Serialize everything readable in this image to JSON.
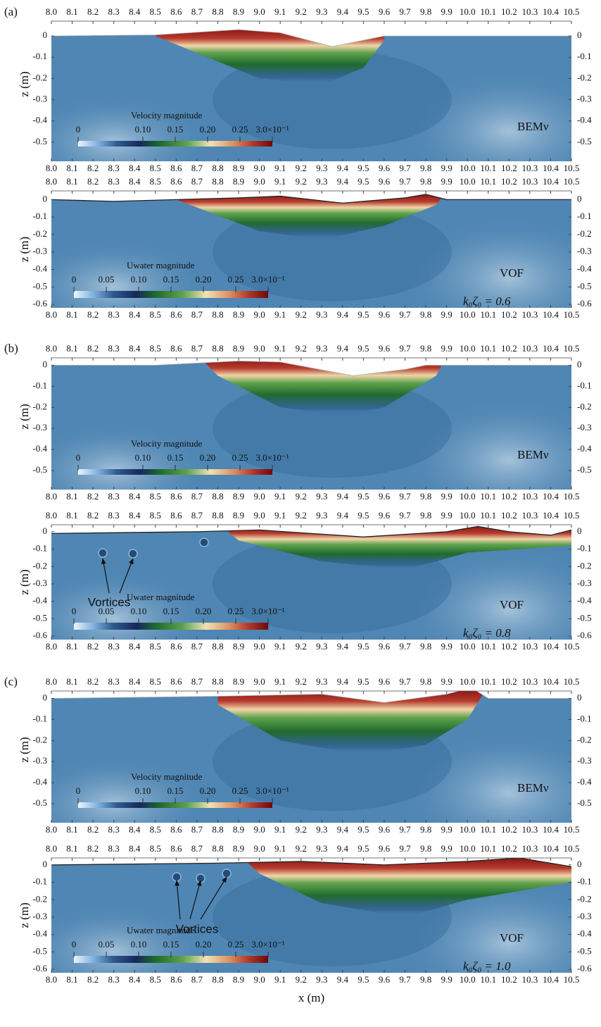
{
  "chart_data": [
    {
      "type": "field",
      "panel_label": "(a)",
      "method_label": "BEMν",
      "ylabel": "z (m)",
      "xlim": [
        8,
        10.5
      ],
      "xticks": [
        {
          "value": 8,
          "label": "8.0"
        },
        8.1,
        8.2,
        8.3,
        8.4,
        8.5,
        8.6,
        8.7,
        8.8,
        8.9,
        {
          "value": 9,
          "label": "9.0"
        },
        9.1,
        9.2,
        9.3,
        9.4,
        9.5,
        9.6,
        9.7,
        9.8,
        9.9,
        {
          "value": 10,
          "label": "10.0"
        },
        10.1,
        10.2,
        10.3,
        10.4,
        10.5
      ],
      "ylim": [
        -0.59,
        0.07
      ],
      "yticks": [
        0,
        -0.1,
        -0.2,
        -0.3,
        -0.4,
        -0.5
      ],
      "colorbar": {
        "title": "Velocity magnitude",
        "clim": [
          0,
          0.3
        ],
        "ticks": [
          0,
          {
            "value": 0.1,
            "label": "0.10"
          },
          0.15,
          {
            "value": 0.2,
            "label": "0.20"
          },
          0.25,
          {
            "value": 0.3,
            "label": "3.0×10⁻¹"
          }
        ]
      }
    },
    {
      "type": "field",
      "method_label": "VOF",
      "param_label": "k₀ζ₀ = 0.6",
      "ylabel": "z (m)",
      "xlim": [
        8,
        10.5
      ],
      "xticks": [
        {
          "value": 8,
          "label": "8.0"
        },
        8.1,
        8.2,
        8.3,
        8.4,
        8.5,
        8.6,
        8.7,
        8.8,
        8.9,
        {
          "value": 9,
          "label": "9.0"
        },
        9.1,
        9.2,
        9.3,
        9.4,
        9.5,
        9.6,
        9.7,
        9.8,
        9.9,
        {
          "value": 10,
          "label": "10.0"
        },
        10.1,
        10.2,
        10.3,
        10.4,
        10.5
      ],
      "ylim": [
        -0.62,
        0.05
      ],
      "yticks": [
        0,
        -0.1,
        -0.2,
        -0.3,
        -0.4,
        -0.5,
        -0.6
      ],
      "colorbar": {
        "title": "Uwater magnitude",
        "clim": [
          0,
          0.3
        ],
        "ticks": [
          0,
          0.05,
          {
            "value": 0.1,
            "label": "0.10"
          },
          0.15,
          {
            "value": 0.2,
            "label": "0.20"
          },
          0.25,
          {
            "value": 0.3,
            "label": "3.0×10⁻¹"
          }
        ]
      }
    },
    {
      "type": "field",
      "panel_label": "(b)",
      "method_label": "BEMν",
      "ylabel": "z (m)",
      "xlim": [
        8,
        10.5
      ],
      "xticks": [
        {
          "value": 8,
          "label": "8.0"
        },
        8.1,
        8.2,
        8.3,
        8.4,
        8.5,
        8.6,
        8.7,
        8.8,
        8.9,
        {
          "value": 9,
          "label": "9.0"
        },
        9.1,
        9.2,
        9.3,
        9.4,
        9.5,
        9.6,
        9.7,
        9.8,
        9.9,
        {
          "value": 10,
          "label": "10.0"
        },
        10.1,
        10.2,
        10.3,
        10.4,
        10.5
      ],
      "ylim": [
        -0.59,
        0.035
      ],
      "yticks": [
        0,
        -0.1,
        -0.2,
        -0.3,
        -0.4,
        -0.5
      ],
      "colorbar": {
        "title": "Velocity magnitude",
        "clim": [
          0,
          0.3
        ],
        "ticks": [
          0,
          {
            "value": 0.1,
            "label": "0.10"
          },
          0.15,
          {
            "value": 0.2,
            "label": "0.20"
          },
          0.25,
          {
            "value": 0.3,
            "label": "3.0×10⁻¹"
          }
        ]
      }
    },
    {
      "type": "field",
      "method_label": "VOF",
      "param_label": "k₀ζ₀ = 0.8",
      "ylabel": "z (m)",
      "annotation": "Vortices",
      "xlim": [
        8,
        10.5
      ],
      "xticks": [
        {
          "value": 8,
          "label": "8.0"
        },
        8.1,
        8.2,
        8.3,
        8.4,
        8.5,
        8.6,
        8.7,
        8.8,
        8.9,
        {
          "value": 9,
          "label": "9.0"
        },
        9.1,
        9.2,
        9.3,
        9.4,
        9.5,
        9.6,
        9.7,
        9.8,
        9.9,
        {
          "value": 10,
          "label": "10.0"
        },
        10.1,
        10.2,
        10.3,
        10.4,
        10.5
      ],
      "ylim": [
        -0.62,
        0.04
      ],
      "yticks": [
        0,
        -0.1,
        -0.2,
        -0.3,
        -0.4,
        -0.5,
        -0.6
      ],
      "colorbar": {
        "title": "Uwater magnitude",
        "clim": [
          0,
          0.3
        ],
        "ticks": [
          0,
          0.05,
          {
            "value": 0.1,
            "label": "0.10"
          },
          0.15,
          {
            "value": 0.2,
            "label": "0.20"
          },
          0.25,
          {
            "value": 0.3,
            "label": "3.0×10⁻¹"
          }
        ]
      }
    },
    {
      "type": "field",
      "panel_label": "(c)",
      "method_label": "BEMν",
      "ylabel": "z (m)",
      "xlim": [
        8,
        10.5
      ],
      "xticks": [
        {
          "value": 8,
          "label": "8.0"
        },
        8.1,
        8.2,
        8.3,
        8.4,
        8.5,
        8.6,
        8.7,
        8.8,
        8.9,
        {
          "value": 9,
          "label": "9.0"
        },
        9.1,
        9.2,
        9.3,
        9.4,
        9.5,
        9.6,
        9.7,
        9.8,
        9.9,
        {
          "value": 10,
          "label": "10.0"
        },
        10.1,
        10.2,
        10.3,
        10.4,
        10.5
      ],
      "ylim": [
        -0.59,
        0.035
      ],
      "yticks": [
        0,
        -0.1,
        -0.2,
        -0.3,
        -0.4,
        -0.5
      ],
      "colorbar": {
        "title": "Velocity magnitude",
        "clim": [
          0,
          0.3
        ],
        "ticks": [
          0,
          {
            "value": 0.1,
            "label": "0.10"
          },
          0.15,
          {
            "value": 0.2,
            "label": "0.20"
          },
          0.25,
          {
            "value": 0.3,
            "label": "3.0×10⁻¹"
          }
        ]
      }
    },
    {
      "type": "field",
      "method_label": "VOF",
      "param_label": "k₀ζ₀ = 1.0",
      "ylabel": "z (m)",
      "annotation": "Vortices",
      "xlabel": "x (m)",
      "xlim": [
        8,
        10.5
      ],
      "xticks": [
        {
          "value": 8,
          "label": "8.0"
        },
        8.1,
        8.2,
        8.3,
        8.4,
        8.5,
        8.6,
        8.7,
        8.8,
        8.9,
        {
          "value": 9,
          "label": "9.0"
        },
        9.1,
        9.2,
        9.3,
        9.4,
        9.5,
        9.6,
        9.7,
        9.8,
        9.9,
        {
          "value": 10,
          "label": "10.0"
        },
        10.1,
        10.2,
        10.3,
        10.4,
        10.5
      ],
      "ylim": [
        -0.62,
        0.04
      ],
      "yticks": [
        0,
        -0.1,
        -0.2,
        -0.3,
        -0.4,
        -0.5,
        -0.6
      ],
      "colorbar": {
        "title": "Uwater magnitude",
        "clim": [
          0,
          0.3
        ],
        "ticks": [
          0,
          0.05,
          {
            "value": 0.1,
            "label": "0.10"
          },
          0.15,
          {
            "value": 0.2,
            "label": "0.20"
          },
          0.25,
          {
            "value": 0.3,
            "label": "3.0×10⁻¹"
          }
        ]
      }
    }
  ]
}
